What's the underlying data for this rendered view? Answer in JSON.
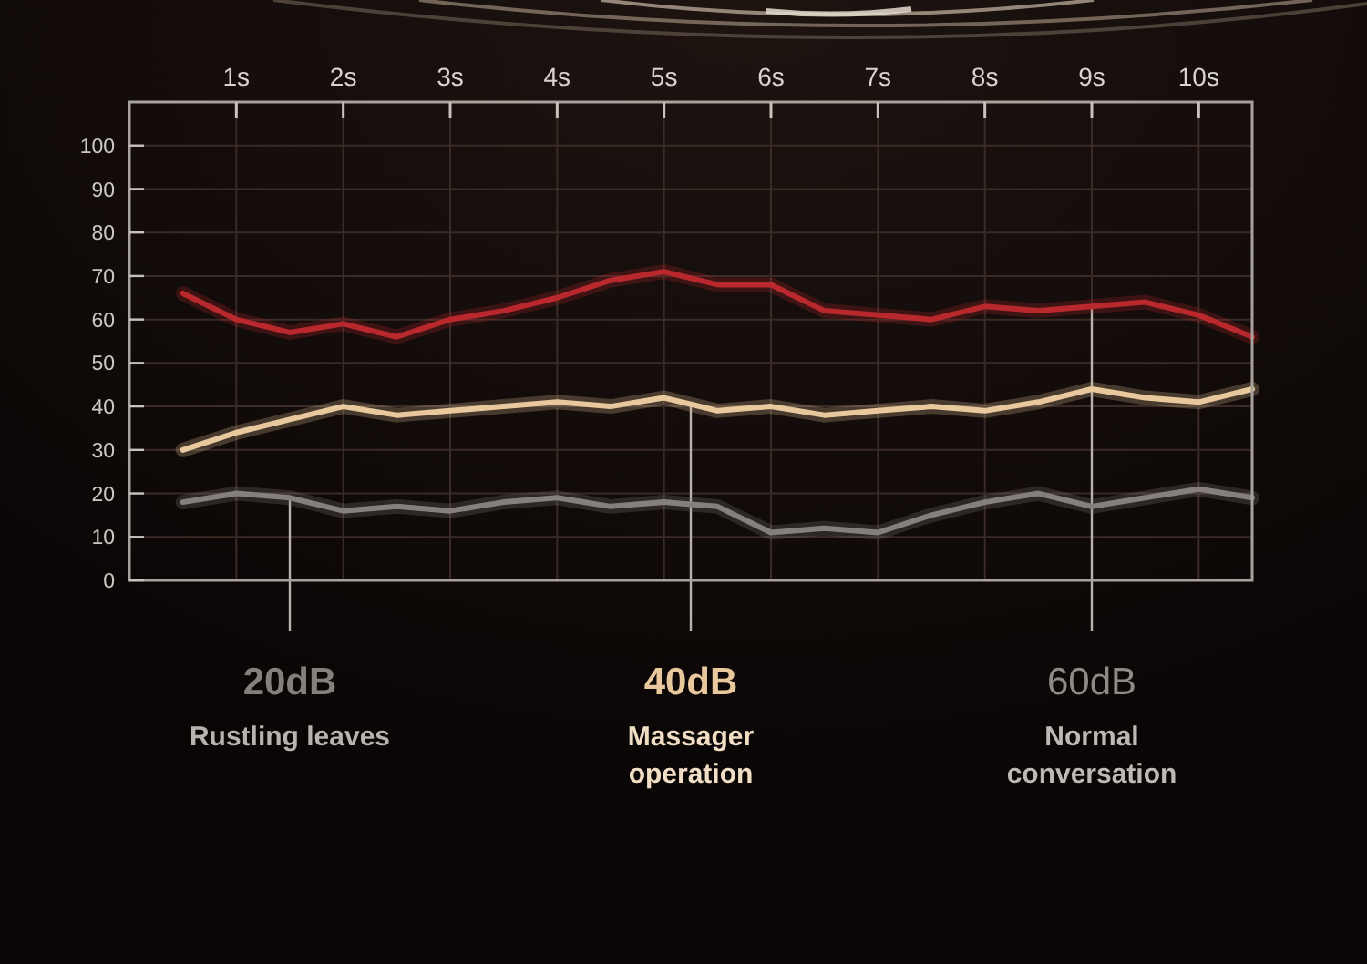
{
  "chart_data": {
    "type": "line",
    "x": [
      0.5,
      1,
      1.5,
      2,
      2.5,
      3,
      3.5,
      4,
      4.5,
      5,
      5.5,
      6,
      6.5,
      7,
      7.5,
      8,
      8.5,
      9,
      9.5,
      10,
      10.5
    ],
    "series": [
      {
        "color": "#b8282c",
        "values": [
          66,
          60,
          57,
          59,
          56,
          60,
          62,
          65,
          69,
          71,
          68,
          68,
          62,
          61,
          60,
          63,
          62,
          63,
          64,
          61,
          56
        ]
      },
      {
        "color": "#e8c89c",
        "values": [
          30,
          34,
          37,
          40,
          38,
          39,
          40,
          41,
          40,
          42,
          39,
          40,
          38,
          39,
          40,
          39,
          41,
          44,
          42,
          41,
          44
        ]
      },
      {
        "color": "#85807b",
        "values": [
          18,
          20,
          19,
          16,
          17,
          16,
          18,
          19,
          17,
          18,
          17,
          11,
          12,
          11,
          15,
          18,
          20,
          17,
          19,
          21,
          19
        ]
      }
    ],
    "xlim": [
      0,
      10.5
    ],
    "xticks": [
      {
        "value": 1,
        "label": "1s"
      },
      {
        "value": 2,
        "label": "2s"
      },
      {
        "value": 3,
        "label": "3s"
      },
      {
        "value": 4,
        "label": "4s"
      },
      {
        "value": 5,
        "label": "5s"
      },
      {
        "value": 6,
        "label": "6s"
      },
      {
        "value": 7,
        "label": "7s"
      },
      {
        "value": 8,
        "label": "8s"
      },
      {
        "value": 9,
        "label": "9s"
      },
      {
        "value": 10,
        "label": "10s"
      }
    ],
    "ylim": [
      0,
      110
    ],
    "yticks": [
      0,
      10,
      20,
      30,
      40,
      50,
      60,
      70,
      80,
      90,
      100
    ],
    "grid": true,
    "annotations": [
      {
        "text": "20dB",
        "x": 1.5,
        "y": 19
      },
      "Rustling leaves",
      {
        "text": "40dB",
        "x": 5.25,
        "y": 40
      },
      "Massager operation",
      {
        "text": "60dB",
        "x": 9,
        "y": 63
      },
      "Normal conversation"
    ]
  }
}
